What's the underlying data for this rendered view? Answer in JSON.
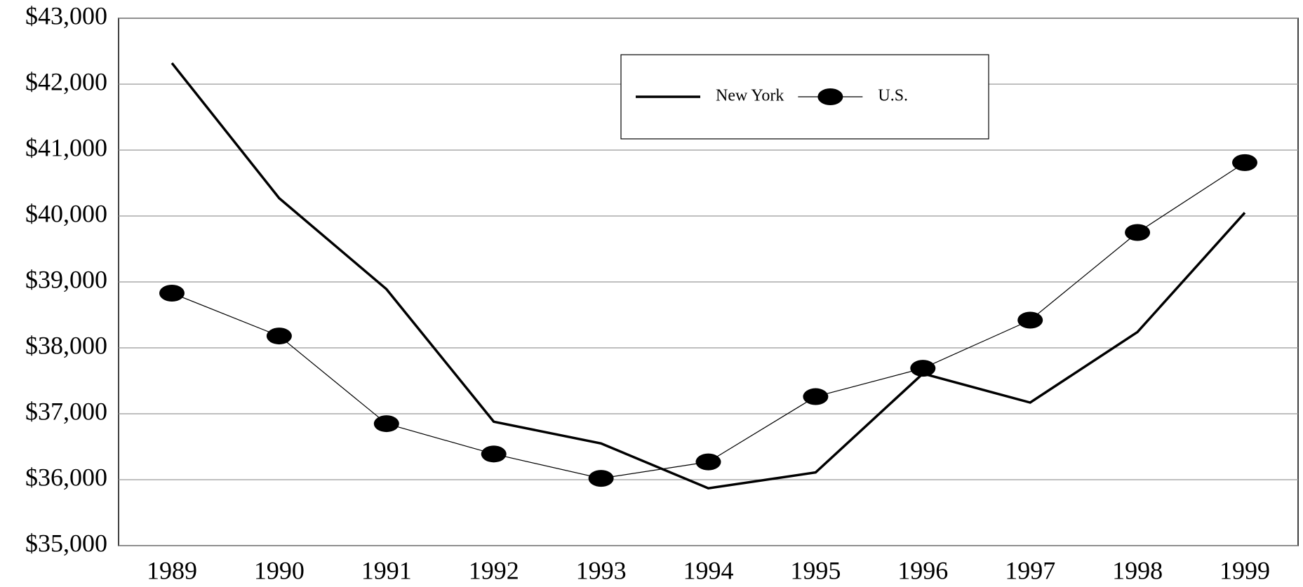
{
  "chart_data": {
    "type": "line",
    "categories": [
      "1989",
      "1990",
      "1991",
      "1992",
      "1993",
      "1994",
      "1995",
      "1996",
      "1997",
      "1998",
      "1999"
    ],
    "series": [
      {
        "name": "New York",
        "color": "#000000",
        "marker": "none",
        "values": [
          42320,
          40270,
          38890,
          36880,
          36550,
          35870,
          36110,
          37610,
          37170,
          38240,
          40050
        ]
      },
      {
        "name": "U.S.",
        "color": "#000000",
        "marker": "ellipse",
        "values": [
          38830,
          38180,
          36850,
          36390,
          36020,
          36270,
          37260,
          37690,
          38420,
          39750,
          40810
        ]
      }
    ],
    "ylim": [
      35000,
      43000
    ],
    "yticks": [
      {
        "value": 35000,
        "label": "$35,000"
      },
      {
        "value": 36000,
        "label": "$36,000"
      },
      {
        "value": 37000,
        "label": "$37,000"
      },
      {
        "value": 38000,
        "label": "$38,000"
      },
      {
        "value": 39000,
        "label": "$39,000"
      },
      {
        "value": 40000,
        "label": "$40,000"
      },
      {
        "value": 41000,
        "label": "$41,000"
      },
      {
        "value": 42000,
        "label": "$42,000"
      },
      {
        "value": 43000,
        "label": "$43,000"
      }
    ],
    "grid": true,
    "legend": "top-center"
  }
}
